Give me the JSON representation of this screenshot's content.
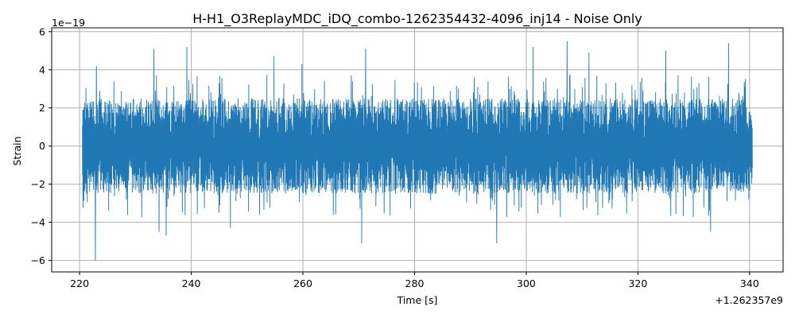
{
  "chart_data": {
    "type": "line",
    "title": "H-H1_O3ReplayMDC_iDQ_combo-1262354432-4096_inj14 - Noise Only",
    "xlabel": "Time [s]",
    "ylabel": "Strain",
    "x_offset_label": "+1.262357e9",
    "y_scale_label": "1e−19",
    "xlim": [
      215,
      346
    ],
    "ylim": [
      -6.6,
      6.2
    ],
    "x_ticks": [
      220,
      240,
      260,
      280,
      300,
      320,
      340
    ],
    "x_tick_labels": [
      "220",
      "240",
      "260",
      "280",
      "300",
      "320",
      "340"
    ],
    "y_ticks": [
      -6,
      -4,
      -2,
      0,
      2,
      4,
      6
    ],
    "y_tick_labels": [
      "−6",
      "−4",
      "−2",
      "0",
      "2",
      "4",
      "6"
    ],
    "grid": true,
    "line_color": "#1f77b4",
    "series": [
      {
        "x_range": [
          220.5,
          340.5
        ],
        "typical_envelope": [
          -2.5,
          2.5
        ],
        "peaks": [
          {
            "x": 223.0,
            "y": 4.2
          },
          {
            "x": 233.3,
            "y": 5.1
          },
          {
            "x": 239.2,
            "y": 5.2
          },
          {
            "x": 254.8,
            "y": 4.7
          },
          {
            "x": 259.8,
            "y": 4.3
          },
          {
            "x": 271.2,
            "y": 5.1
          },
          {
            "x": 301.2,
            "y": 5.2
          },
          {
            "x": 307.3,
            "y": 5.5
          },
          {
            "x": 311.2,
            "y": 4.9
          },
          {
            "x": 325.0,
            "y": 5.0
          },
          {
            "x": 336.2,
            "y": 5.4
          }
        ],
        "troughs": [
          {
            "x": 222.8,
            "y": -6.0
          },
          {
            "x": 234.2,
            "y": -4.5
          },
          {
            "x": 235.5,
            "y": -4.7
          },
          {
            "x": 247.0,
            "y": -4.3
          },
          {
            "x": 270.5,
            "y": -5.1
          },
          {
            "x": 294.7,
            "y": -5.1
          },
          {
            "x": 333.0,
            "y": -4.5
          }
        ]
      }
    ]
  }
}
